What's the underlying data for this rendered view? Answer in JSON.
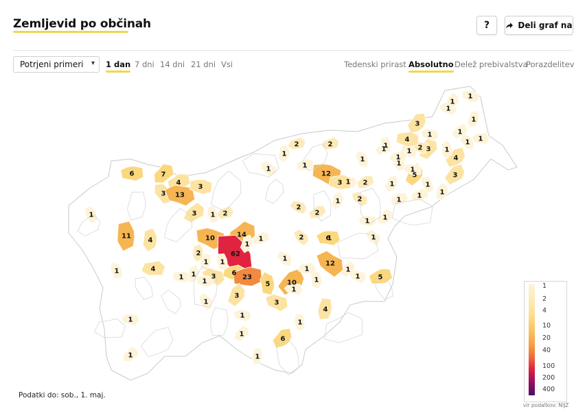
{
  "header": {
    "title": "Zemljevid po občinah",
    "help_label": "?",
    "share_label": "Deli graf na"
  },
  "controls": {
    "select_value": "Potrjeni primeri",
    "period_tabs": [
      {
        "label": "1 dan",
        "active": true
      },
      {
        "label": "7 dni",
        "active": false
      },
      {
        "label": "14 dni",
        "active": false
      },
      {
        "label": "21 dni",
        "active": false
      },
      {
        "label": "Vsi",
        "active": false
      }
    ],
    "measure_tabs": [
      {
        "label": "Tedenski prirast",
        "active": false
      },
      {
        "label": "Absolutno",
        "active": true
      },
      {
        "label": "Delež prebivalstva",
        "active": false
      },
      {
        "label": "Porazdelitev",
        "active": false
      }
    ]
  },
  "map": {
    "municipality_values": [
      "6",
      "7",
      "4",
      "3",
      "13",
      "3",
      "1",
      "3",
      "2",
      "1",
      "10",
      "14",
      "1",
      "62",
      "1",
      "11",
      "4",
      "4",
      "1",
      "2",
      "1",
      "1",
      "1",
      "3",
      "6",
      "23",
      "5",
      "10",
      "1",
      "1",
      "3",
      "1",
      "1",
      "1",
      "1",
      "1",
      "6",
      "1",
      "1",
      "3",
      "1",
      "1",
      "1",
      "2",
      "1",
      "4",
      "1",
      "5",
      "1",
      "1",
      "2",
      "2",
      "6",
      "1",
      "1",
      "1",
      "12",
      "1",
      "2",
      "1",
      "1",
      "12",
      "2",
      "1",
      "2",
      "2",
      "3",
      "1",
      "1",
      "1",
      "5",
      "1",
      "1",
      "1",
      "3",
      "4",
      "1",
      "3",
      "2",
      "1",
      "3",
      "1",
      "4",
      "1",
      "1",
      "1",
      "1",
      "1",
      "1",
      "1",
      "1",
      "1",
      "1",
      "1",
      "1",
      "1"
    ]
  },
  "legend": {
    "labels": [
      "1",
      "2",
      "4",
      "10",
      "20",
      "40",
      "100",
      "200",
      "400"
    ],
    "colors": [
      "#fdf3d8",
      "#fdeab9",
      "#fcdd8f",
      "#f9c35f",
      "#f59d42",
      "#ec6a3c",
      "#e0243f",
      "#a3105a",
      "#4f0c68"
    ]
  },
  "footer": {
    "data_date": "Podatki do: sob., 1. maj.",
    "source": "vir podatkov: NIJZ"
  }
}
